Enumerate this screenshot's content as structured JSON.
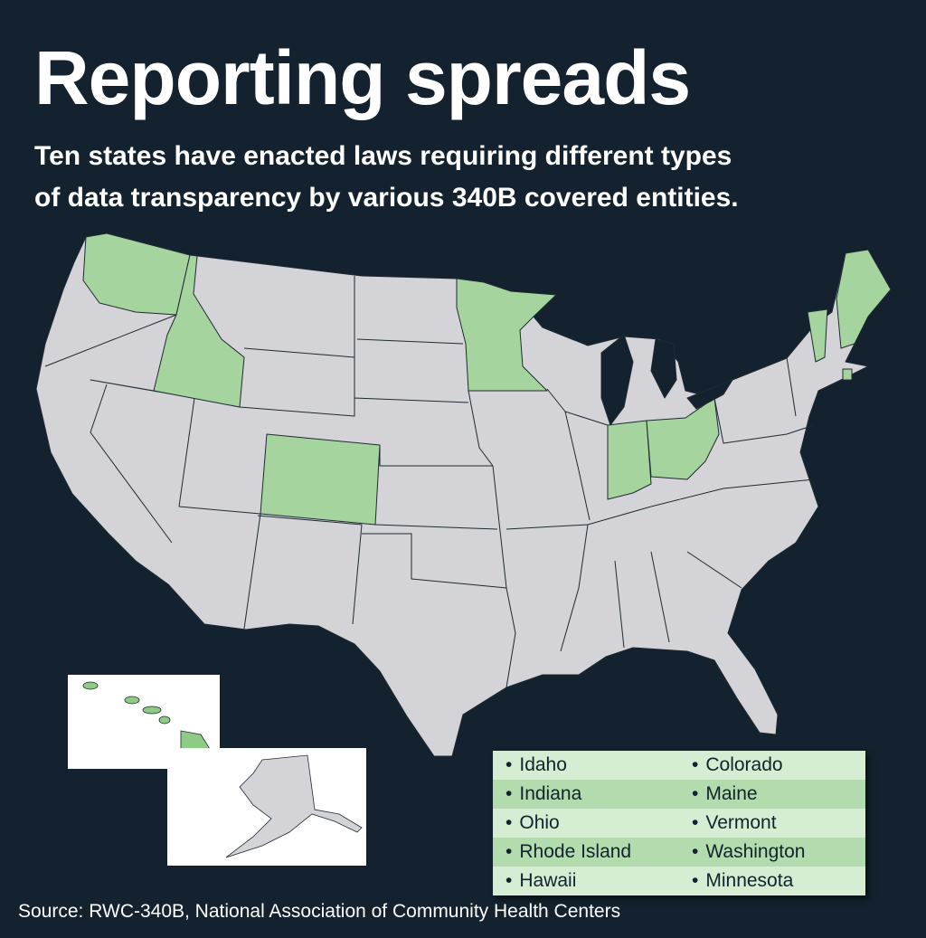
{
  "header": {
    "title": "Reporting spreads",
    "subtitle_lines": [
      "Ten states have enacted laws requiring different types",
      "of data transparency by various 340B covered entities."
    ]
  },
  "legend": {
    "rows": [
      [
        "Idaho",
        "Colorado"
      ],
      [
        "Indiana",
        "Maine"
      ],
      [
        "Ohio",
        "Vermont"
      ],
      [
        "Rhode Island",
        "Washington"
      ],
      [
        "Hawaii",
        "Minnesota"
      ]
    ]
  },
  "source": "Source: RWC-340B, National Association of Community Health Centers"
}
